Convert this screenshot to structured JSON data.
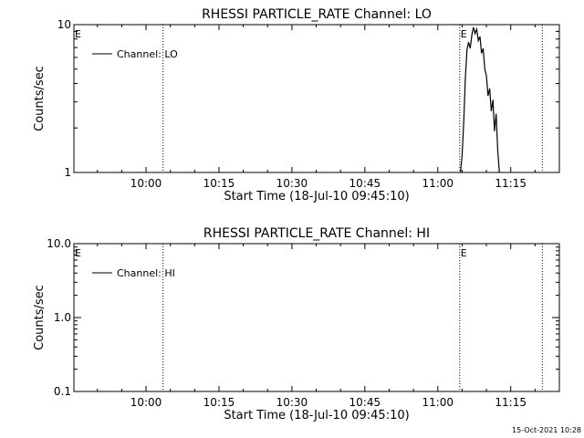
{
  "timestamp": "15-Oct-2021 10:28",
  "chart_data": [
    {
      "type": "line",
      "title": "RHESSI PARTICLE_RATE Channel: LO",
      "xlabel": "Start Time (18-Jul-10 09:45:10)",
      "ylabel": "Counts/sec",
      "y_scale": "log",
      "ylim": [
        1,
        10
      ],
      "y_ticks": [
        1,
        10
      ],
      "y_tick_labels": [
        "1",
        "10"
      ],
      "x_range": [
        "09:45:10",
        "11:25:00"
      ],
      "x_ticks": [
        "10:00",
        "10:15",
        "10:30",
        "10:45",
        "11:00",
        "11:15"
      ],
      "legend": {
        "label": "Channel: LO",
        "placement": "top-left"
      },
      "events": [
        {
          "label": "E",
          "time": "09:45:10"
        },
        {
          "label": "E",
          "time": "11:04:30"
        }
      ],
      "dashed_lines": [
        "10:03:30",
        "11:21:30"
      ],
      "series": [
        {
          "x": [
            "11:04:40",
            "11:05:00",
            "11:05:20",
            "11:05:40",
            "11:06:00",
            "11:06:20",
            "11:06:40",
            "11:07:00",
            "11:07:20",
            "11:07:40",
            "11:08:00",
            "11:08:20",
            "11:08:40",
            "11:09:00",
            "11:09:20",
            "11:09:40",
            "11:10:00",
            "11:10:20",
            "11:10:40",
            "11:11:00",
            "11:11:20",
            "11:11:40",
            "11:12:00",
            "11:12:20",
            "11:12:40"
          ],
          "values": [
            1,
            1.3,
            2.2,
            4.4,
            6.8,
            7.6,
            6.9,
            8.5,
            9.6,
            8.7,
            9.3,
            7.8,
            8.3,
            6.4,
            6.9,
            5.0,
            4.5,
            3.3,
            3.7,
            2.6,
            3.1,
            1.9,
            2.5,
            1.4,
            1
          ]
        }
      ]
    },
    {
      "type": "line",
      "title": "RHESSI PARTICLE_RATE Channel: HI",
      "xlabel": "Start Time (18-Jul-10 09:45:10)",
      "ylabel": "Counts/sec",
      "y_scale": "log",
      "ylim": [
        0.1,
        10
      ],
      "y_ticks": [
        0.1,
        1,
        10
      ],
      "y_tick_labels": [
        "0.1",
        "1.0",
        "10.0"
      ],
      "x_range": [
        "09:45:10",
        "11:25:00"
      ],
      "x_ticks": [
        "10:00",
        "10:15",
        "10:30",
        "10:45",
        "11:00",
        "11:15"
      ],
      "legend": {
        "label": "Channel: HI",
        "placement": "top-left"
      },
      "events": [
        {
          "label": "E",
          "time": "09:45:10"
        },
        {
          "label": "E",
          "time": "11:04:30"
        }
      ],
      "dashed_lines": [
        "10:03:30",
        "11:21:30"
      ],
      "series": []
    }
  ]
}
